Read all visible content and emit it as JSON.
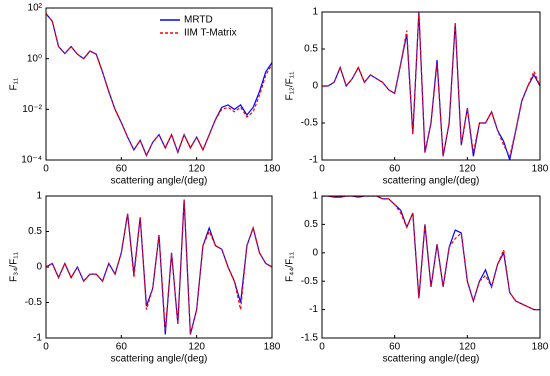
{
  "chart_data": [
    {
      "type": "line",
      "ylabel": "F₁₁",
      "xlabel": "scattering angle/(deg)",
      "log_y": true,
      "legend": true,
      "x": [
        0,
        5,
        10,
        15,
        20,
        25,
        30,
        35,
        40,
        45,
        50,
        55,
        60,
        65,
        70,
        75,
        80,
        85,
        90,
        95,
        100,
        105,
        110,
        115,
        120,
        125,
        130,
        135,
        140,
        145,
        150,
        155,
        160,
        165,
        170,
        175,
        180
      ],
      "xlim": [
        0,
        180
      ],
      "xticks": [
        0,
        60,
        120,
        180
      ],
      "ylim": [
        0.0001,
        100
      ],
      "yticks": [
        {
          "value": 0.0001,
          "label": "10⁻⁴"
        },
        {
          "value": 0.01,
          "label": "10⁻²"
        },
        {
          "value": 1,
          "label": "10⁰"
        },
        {
          "value": 100,
          "label": "10²"
        }
      ],
      "series": [
        {
          "name": "MRTD",
          "color": "#0000ff",
          "line_style": "solid",
          "values": [
            60,
            30,
            3,
            1.6,
            3,
            1.5,
            1,
            2,
            1.5,
            0.3,
            0.05,
            0.01,
            0.003,
            0.0008,
            0.00025,
            0.0006,
            0.00015,
            0.0005,
            0.001,
            0.0003,
            0.001,
            0.0002,
            0.001,
            0.0003,
            0.0008,
            0.00025,
            0.001,
            0.004,
            0.012,
            0.015,
            0.01,
            0.015,
            0.006,
            0.012,
            0.05,
            0.3,
            0.7
          ]
        },
        {
          "name": "IIM T-Matrix",
          "color": "#ff0000",
          "line_style": "dashed",
          "values": [
            60,
            30,
            3,
            1.6,
            3,
            1.5,
            1,
            2,
            1.5,
            0.3,
            0.05,
            0.01,
            0.003,
            0.0008,
            0.00025,
            0.0006,
            0.00015,
            0.0005,
            0.001,
            0.0003,
            0.001,
            0.0002,
            0.001,
            0.0003,
            0.0008,
            0.00025,
            0.001,
            0.004,
            0.01,
            0.012,
            0.008,
            0.012,
            0.005,
            0.008,
            0.035,
            0.22,
            0.6
          ]
        }
      ]
    },
    {
      "type": "line",
      "ylabel": "F₁₂/F₁₁",
      "xlabel": "scattering angle/(deg)",
      "log_y": false,
      "legend": false,
      "x": [
        0,
        5,
        10,
        15,
        20,
        25,
        30,
        35,
        40,
        45,
        50,
        55,
        60,
        65,
        70,
        75,
        80,
        85,
        90,
        95,
        100,
        105,
        110,
        115,
        120,
        125,
        130,
        135,
        140,
        145,
        150,
        155,
        160,
        165,
        170,
        175,
        180
      ],
      "xlim": [
        0,
        180
      ],
      "xticks": [
        0,
        60,
        120,
        180
      ],
      "ylim": [
        -1,
        1
      ],
      "yticks": [
        -1,
        -0.5,
        0,
        0.5,
        1
      ],
      "series": [
        {
          "name": "MRTD",
          "color": "#0000ff",
          "line_style": "solid",
          "values": [
            0,
            0,
            0.05,
            0.25,
            0,
            0.1,
            0.25,
            0.05,
            0.15,
            0.1,
            0.05,
            -0.05,
            -0.1,
            0.3,
            0.7,
            -0.65,
            1,
            -0.9,
            -0.5,
            0.35,
            -0.95,
            -0.5,
            0.85,
            -0.8,
            -0.3,
            -0.95,
            -0.5,
            -0.5,
            -0.35,
            -0.6,
            -0.75,
            -1,
            -0.6,
            -0.2,
            0,
            0.15,
            0
          ]
        },
        {
          "name": "IIM T-Matrix",
          "color": "#ff0000",
          "line_style": "dashed",
          "values": [
            0,
            0,
            0.05,
            0.25,
            0,
            0.1,
            0.25,
            0.05,
            0.15,
            0.1,
            0.05,
            -0.05,
            -0.1,
            0.3,
            0.75,
            -0.65,
            1,
            -0.9,
            -0.5,
            0.3,
            -0.95,
            -0.5,
            0.85,
            -0.8,
            -0.3,
            -0.9,
            -0.5,
            -0.5,
            -0.35,
            -0.6,
            -0.8,
            -0.95,
            -0.6,
            -0.2,
            0,
            0.2,
            0
          ]
        }
      ]
    },
    {
      "type": "line",
      "ylabel": "F₃₄/F₁₁",
      "xlabel": "scattering angle/(deg)",
      "log_y": false,
      "legend": false,
      "x": [
        0,
        5,
        10,
        15,
        20,
        25,
        30,
        35,
        40,
        45,
        50,
        55,
        60,
        65,
        70,
        75,
        80,
        85,
        90,
        95,
        100,
        105,
        110,
        115,
        120,
        125,
        130,
        135,
        140,
        145,
        150,
        155,
        160,
        165,
        170,
        175,
        180
      ],
      "xlim": [
        0,
        180
      ],
      "xticks": [
        0,
        60,
        120,
        180
      ],
      "ylim": [
        -1,
        1
      ],
      "yticks": [
        -1,
        -0.5,
        0,
        0.5,
        1
      ],
      "series": [
        {
          "name": "MRTD",
          "color": "#0000ff",
          "line_style": "solid",
          "values": [
            0,
            0.05,
            -0.15,
            0.05,
            -0.15,
            0,
            -0.2,
            -0.1,
            -0.1,
            -0.2,
            0.05,
            -0.1,
            0.2,
            0.75,
            -0.1,
            0.7,
            -0.55,
            -0.3,
            0.45,
            -0.95,
            0.2,
            -0.8,
            0.95,
            -0.95,
            -0.6,
            0.3,
            0.55,
            0.3,
            0.25,
            0,
            -0.2,
            -0.5,
            0.3,
            0.55,
            0.2,
            0.05,
            0
          ]
        },
        {
          "name": "IIM T-Matrix",
          "color": "#ff0000",
          "line_style": "dashed",
          "values": [
            0,
            0.05,
            -0.15,
            0.05,
            -0.15,
            0,
            -0.2,
            -0.1,
            -0.1,
            -0.2,
            0.05,
            -0.1,
            0.2,
            0.75,
            -0.15,
            0.7,
            -0.6,
            -0.3,
            0.45,
            -0.9,
            0.2,
            -0.8,
            0.95,
            -0.95,
            -0.6,
            0.3,
            0.5,
            0.3,
            0.25,
            0,
            -0.2,
            -0.6,
            0.3,
            0.55,
            0.2,
            0.05,
            0
          ]
        }
      ]
    },
    {
      "type": "line",
      "ylabel": "F₄₄/F₁₁",
      "xlabel": "scattering angle/(deg)",
      "log_y": false,
      "legend": false,
      "x": [
        0,
        5,
        10,
        15,
        20,
        25,
        30,
        35,
        40,
        45,
        50,
        55,
        60,
        65,
        70,
        75,
        80,
        85,
        90,
        95,
        100,
        105,
        110,
        115,
        120,
        125,
        130,
        135,
        140,
        145,
        150,
        155,
        160,
        165,
        170,
        175,
        180
      ],
      "xlim": [
        0,
        180
      ],
      "xticks": [
        0,
        60,
        120,
        180
      ],
      "ylim": [
        -1.5,
        1
      ],
      "yticks": [
        -1.5,
        -1,
        -0.5,
        0,
        0.5,
        1
      ],
      "series": [
        {
          "name": "MRTD",
          "color": "#0000ff",
          "line_style": "solid",
          "values": [
            1,
            1,
            0.98,
            0.98,
            1,
            1,
            0.98,
            1,
            1,
            1,
            0.95,
            0.95,
            0.85,
            0.75,
            0.45,
            0.7,
            -0.8,
            0.5,
            -0.6,
            0.15,
            -0.6,
            0.1,
            0.4,
            0.35,
            -0.5,
            -0.85,
            -0.5,
            -0.3,
            -0.6,
            -0.2,
            0,
            -0.7,
            -0.85,
            -0.9,
            -0.95,
            -1,
            -1
          ]
        },
        {
          "name": "IIM T-Matrix",
          "color": "#ff0000",
          "line_style": "dashed",
          "values": [
            1,
            1,
            0.98,
            0.98,
            1,
            1,
            0.98,
            1,
            1,
            1,
            0.95,
            0.95,
            0.85,
            0.7,
            0.45,
            0.7,
            -0.8,
            0.5,
            -0.6,
            0.15,
            -0.6,
            0.1,
            0.25,
            0.35,
            -0.5,
            -0.85,
            -0.5,
            -0.4,
            -0.6,
            -0.2,
            0.05,
            -0.7,
            -0.85,
            -0.9,
            -0.95,
            -1,
            -1
          ]
        }
      ]
    }
  ]
}
